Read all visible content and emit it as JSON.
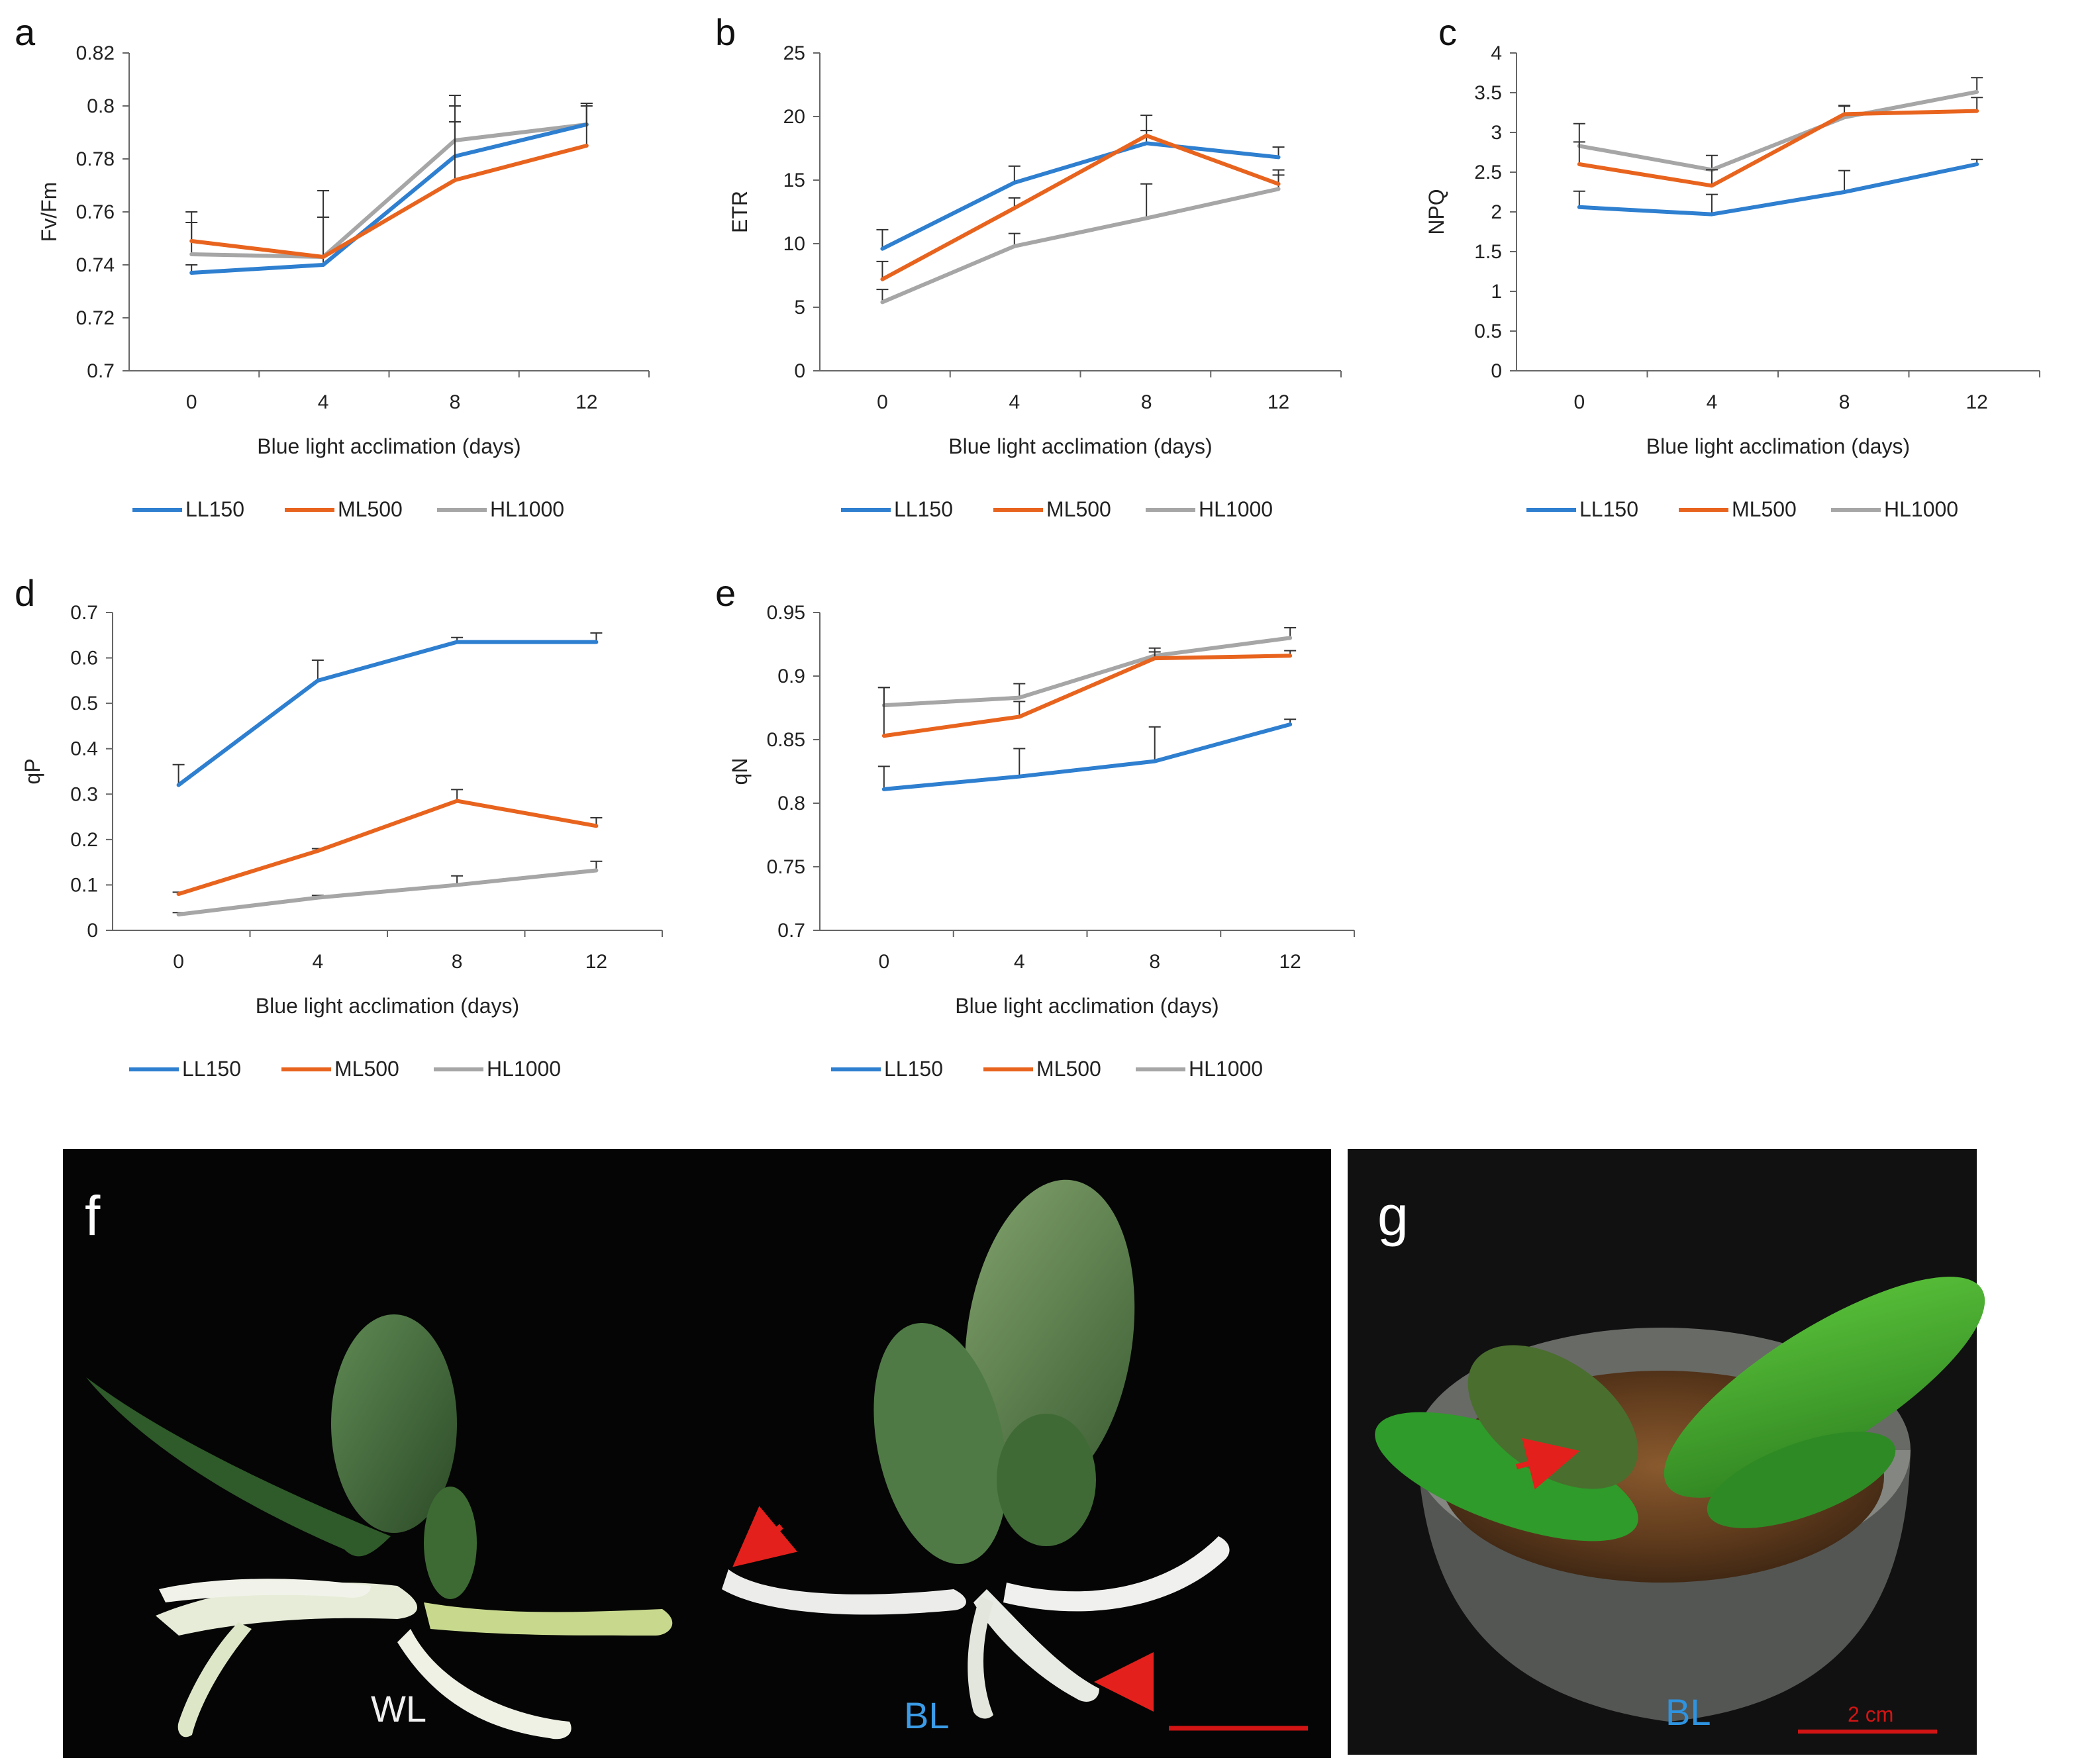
{
  "colors": {
    "LL150": "#2e7fd0",
    "ML500": "#e8641e",
    "HL1000": "#a6a6a6",
    "scale": "#d21414",
    "arrow": "#e3201b"
  },
  "chart_data": [
    {
      "type": "line",
      "panel": "a",
      "ylabel": "Fv/Fm",
      "xlabel": "Blue light acclimation (days)",
      "categories": [
        "0",
        "4",
        "8",
        "12"
      ],
      "ylim": [
        0.7,
        0.82
      ],
      "yticks": [
        0.7,
        0.72,
        0.74,
        0.76,
        0.78,
        0.8,
        0.82
      ],
      "ytick_labels": [
        "0.7",
        "0.72",
        "0.74",
        "0.76",
        "0.78",
        "0.8",
        "0.82"
      ],
      "series": [
        {
          "name": "LL150",
          "values": [
            0.737,
            0.74,
            0.781,
            0.793
          ],
          "errors": [
            0.003,
            0.018,
            0.019,
            0.008
          ]
        },
        {
          "name": "ML500",
          "values": [
            0.749,
            0.743,
            0.772,
            0.785
          ],
          "errors": [
            0.011,
            0.025,
            0.022,
            0.015
          ]
        },
        {
          "name": "HL1000",
          "values": [
            0.744,
            0.743,
            0.787,
            0.793
          ],
          "errors": [
            0.012,
            0.015,
            0.017,
            0.008
          ]
        }
      ],
      "legend": [
        "LL150",
        "ML500",
        "HL1000"
      ]
    },
    {
      "type": "line",
      "panel": "b",
      "ylabel": "ETR",
      "xlabel": "Blue light acclimation (days)",
      "categories": [
        "0",
        "4",
        "8",
        "12"
      ],
      "ylim": [
        0,
        25
      ],
      "yticks": [
        0,
        5,
        10,
        15,
        20,
        25
      ],
      "ytick_labels": [
        "0",
        "5",
        "10",
        "15",
        "20",
        "25"
      ],
      "series": [
        {
          "name": "LL150",
          "values": [
            9.6,
            14.8,
            17.9,
            16.8
          ],
          "errors": [
            1.5,
            1.3,
            1.0,
            0.8
          ]
        },
        {
          "name": "ML500",
          "values": [
            7.2,
            12.8,
            18.5,
            14.7
          ],
          "errors": [
            1.4,
            0.8,
            1.6,
            0.7
          ]
        },
        {
          "name": "HL1000",
          "values": [
            5.4,
            9.8,
            12.0,
            14.3
          ],
          "errors": [
            1.0,
            1.0,
            2.7,
            1.5
          ]
        }
      ],
      "legend": [
        "LL150",
        "ML500",
        "HL1000"
      ]
    },
    {
      "type": "line",
      "panel": "c",
      "ylabel": "NPQ",
      "xlabel": "Blue light acclimation (days)",
      "categories": [
        "0",
        "4",
        "8",
        "12"
      ],
      "ylim": [
        0,
        4
      ],
      "yticks": [
        0,
        0.5,
        1,
        1.5,
        2,
        2.5,
        3,
        3.5,
        4
      ],
      "ytick_labels": [
        "0",
        "0.5",
        "1",
        "1.5",
        "2",
        "2.5",
        "3",
        "3.5",
        "4"
      ],
      "series": [
        {
          "name": "LL150",
          "values": [
            2.06,
            1.97,
            2.25,
            2.6
          ],
          "errors": [
            0.2,
            0.25,
            0.27,
            0.06
          ]
        },
        {
          "name": "ML500",
          "values": [
            2.6,
            2.33,
            3.23,
            3.27
          ],
          "errors": [
            0.28,
            0.2,
            0.1,
            0.17
          ]
        },
        {
          "name": "HL1000",
          "values": [
            2.83,
            2.53,
            3.19,
            3.51
          ],
          "errors": [
            0.28,
            0.18,
            0.15,
            0.18
          ]
        }
      ],
      "legend": [
        "LL150",
        "ML500",
        "HL1000"
      ]
    },
    {
      "type": "line",
      "panel": "d",
      "ylabel": "qP",
      "xlabel": "Blue light acclimation (days)",
      "categories": [
        "0",
        "4",
        "8",
        "12"
      ],
      "ylim": [
        0,
        0.7
      ],
      "yticks": [
        0,
        0.1,
        0.2,
        0.3,
        0.4,
        0.5,
        0.6,
        0.7
      ],
      "ytick_labels": [
        "0",
        "0.1",
        "0.2",
        "0.3",
        "0.4",
        "0.5",
        "0.6",
        "0.7"
      ],
      "series": [
        {
          "name": "LL150",
          "values": [
            0.32,
            0.55,
            0.635,
            0.635
          ],
          "errors": [
            0.045,
            0.045,
            0.01,
            0.02
          ]
        },
        {
          "name": "ML500",
          "values": [
            0.08,
            0.175,
            0.285,
            0.23
          ],
          "errors": [
            0.004,
            0.005,
            0.025,
            0.018
          ]
        },
        {
          "name": "HL1000",
          "values": [
            0.035,
            0.072,
            0.1,
            0.132
          ],
          "errors": [
            0.004,
            0.005,
            0.02,
            0.02
          ]
        }
      ],
      "legend": [
        "LL150",
        "ML500",
        "HL1000"
      ]
    },
    {
      "type": "line",
      "panel": "e",
      "ylabel": "qN",
      "xlabel": "Blue light acclimation (days)",
      "categories": [
        "0",
        "4",
        "8",
        "12"
      ],
      "ylim": [
        0.7,
        0.95
      ],
      "yticks": [
        0.7,
        0.75,
        0.8,
        0.85,
        0.9,
        0.95
      ],
      "ytick_labels": [
        "0.7",
        "0.75",
        "0.8",
        "0.85",
        "0.9",
        "0.95"
      ],
      "series": [
        {
          "name": "LL150",
          "values": [
            0.811,
            0.821,
            0.833,
            0.862
          ],
          "errors": [
            0.018,
            0.022,
            0.027,
            0.004
          ]
        },
        {
          "name": "ML500",
          "values": [
            0.853,
            0.868,
            0.914,
            0.916
          ],
          "errors": [
            0.038,
            0.012,
            0.005,
            0.004
          ]
        },
        {
          "name": "HL1000",
          "values": [
            0.877,
            0.883,
            0.916,
            0.93
          ],
          "errors": [
            0.014,
            0.011,
            0.006,
            0.008
          ]
        }
      ],
      "legend": [
        "LL150",
        "ML500",
        "HL1000"
      ]
    }
  ],
  "photos": {
    "f": {
      "letter": "f",
      "label_wl": "WL",
      "label_bl": "BL"
    },
    "g": {
      "letter": "g",
      "label_bl": "BL",
      "scale_label": "2 cm"
    }
  }
}
